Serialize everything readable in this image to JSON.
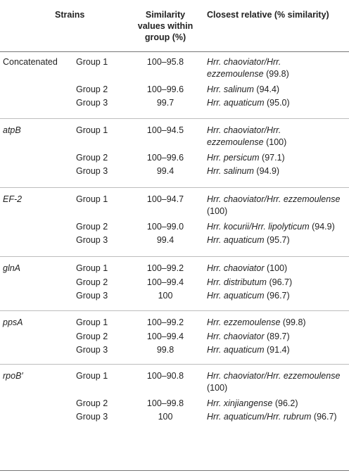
{
  "header": {
    "strains": "Strains",
    "similarity_line1": "Similarity",
    "similarity_line2": "values within",
    "similarity_line3": "group (%)",
    "closest_relative": "Closest relative (% similarity)"
  },
  "sections": [
    {
      "gene": "Concatenated",
      "gene_italic": false,
      "rows": [
        {
          "group": "Group 1",
          "similarity": "100–95.8",
          "relative_name_line1": "Hrr. chaoviator/Hrr.",
          "relative_name_line2": "ezzemoulense",
          "relative_pct": "(99.8)"
        },
        {
          "group": "Group 2",
          "similarity": "100–99.6",
          "relative_name_line1": "Hrr. salinum",
          "relative_pct": "(94.4)"
        },
        {
          "group": "Group 3",
          "similarity": "99.7",
          "relative_name_line1": "Hrr. aquaticum",
          "relative_pct": "(95.0)"
        }
      ]
    },
    {
      "gene": "atpB",
      "gene_italic": true,
      "rows": [
        {
          "group": "Group 1",
          "similarity": "100–94.5",
          "relative_name_line1": "Hrr. chaoviator/Hrr.",
          "relative_name_line2": "ezzemoulense",
          "relative_pct": "(100)"
        },
        {
          "group": "Group 2",
          "similarity": "100–99.6",
          "relative_name_line1": "Hrr. persicum",
          "relative_pct": "(97.1)"
        },
        {
          "group": "Group 3",
          "similarity": "99.4",
          "relative_name_line1": "Hrr. salinum",
          "relative_pct": "(94.9)"
        }
      ]
    },
    {
      "gene": "EF-2",
      "gene_italic": true,
      "rows": [
        {
          "group": "Group 1",
          "similarity": "100–94.7",
          "relative_name_line1": "Hrr. chaoviator/Hrr. ezzemoulense",
          "relative_pct": "(100)",
          "pct_on_next_line": true
        },
        {
          "group": "Group 2",
          "similarity": "100–99.0",
          "relative_name_line1": "Hrr. kocurii/Hrr. lipolyticum",
          "relative_pct": "(94.9)"
        },
        {
          "group": "Group 3",
          "similarity": "99.4",
          "relative_name_line1": "Hrr. aquaticum",
          "relative_pct": "(95.7)"
        }
      ]
    },
    {
      "gene": "glnA",
      "gene_italic": true,
      "rows": [
        {
          "group": "Group 1",
          "similarity": "100–99.2",
          "relative_name_line1": "Hrr. chaoviator",
          "relative_pct": "(100)"
        },
        {
          "group": "Group 2",
          "similarity": "100–99.4",
          "relative_name_line1": "Hrr. distributum",
          "relative_pct": "(96.7)"
        },
        {
          "group": "Group 3",
          "similarity": "100",
          "relative_name_line1": "Hrr. aquaticum",
          "relative_pct": "(96.7)"
        }
      ]
    },
    {
      "gene": "ppsA",
      "gene_italic": true,
      "rows": [
        {
          "group": "Group 1",
          "similarity": "100–99.2",
          "relative_name_line1": "Hrr. ezzemoulense",
          "relative_pct": "(99.8)"
        },
        {
          "group": "Group 2",
          "similarity": "100–99.4",
          "relative_name_line1": "Hrr. chaoviator",
          "relative_pct": "(89.7)"
        },
        {
          "group": "Group 3",
          "similarity": "99.8",
          "relative_name_line1": "Hrr. aquaticum",
          "relative_pct": "(91.4)"
        }
      ]
    },
    {
      "gene": "rpoB′",
      "gene_italic": true,
      "rows": [
        {
          "group": "Group 1",
          "similarity": "100–90.8",
          "relative_name_line1": "Hrr. chaoviator/Hrr. ezzemoulense",
          "relative_pct": "(100)",
          "pct_on_next_line": true
        },
        {
          "group": "Group 2",
          "similarity": "100–99.8",
          "relative_name_line1": "Hrr. xinjiangense",
          "relative_pct": "(96.2)"
        },
        {
          "group": "Group 3",
          "similarity": "100",
          "relative_name_line1": "Hrr. aquaticum/Hrr. rubrum",
          "relative_pct": "(96.7)"
        }
      ]
    }
  ]
}
